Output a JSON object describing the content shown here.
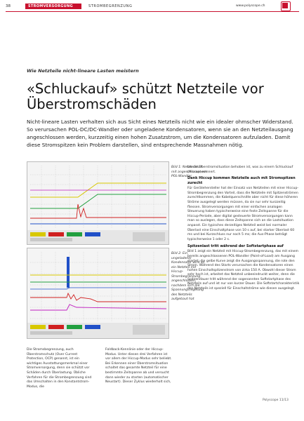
{
  "header": {
    "page_number": "38",
    "section_primary": "STROMVERSORGUNG",
    "section_secondary": "STROMBEGRENZUNG",
    "website": "www.polyscope.ch"
  },
  "article": {
    "kicker": "Wie Netzteile nicht-lineare Lasten meistern",
    "headline": "«Schluckauf» schützt Netzteile vor Überstromschäden",
    "lead": "Nicht-lineare Lasten verhalten sich aus Sicht eines Netzteils nicht wie ein idealer ohmscher Widerstand. So verursachen POL-DC/DC-Wandler oder ungeladene Kondensatoren, wenn sie an den Netzteilausgang angeschlossen werden, kurzzeitig einen hohen Zusatzstrom, um die Kondensatoren aufzuladen. Damit diese Stromspitzen kein Problem darstellen, sind entsprechende Massnahmen nötig."
  },
  "figures": {
    "fig1_caption": "Bild 1: Netzteilstart mit angeschlossenem POL-Wandler",
    "fig2_caption": "Bild 2: Ein ungeladener Kondensator wird an ein Netzteil mit Hiccup-Strombegrenzung angeschlossen, nachdem sich die Spannungsregelung des Netzteils aufgebaut hat"
  },
  "right_column": {
    "intro": "bis die Überstromsituation behoben ist, was zu einem Schluckauf (Hiccup) erinnert.",
    "subhead1": "Dank Hiccup kommen Netzteile auch mit Stromspitzen zurecht",
    "para1": "Für Gerätehersteller hat der Einsatz von Netzteilen mit einer Hiccup-Strombegrenzung den Vorteil, dass die Netzteile mit Spitzenströmen zurechtkommen, die Kabelquerschnitte aber nicht für diese höheren Ströme ausgelegt werden müssen, da sie nur sehr kurzzeitig fliessen. Stromversorgungen mit einer einfachen analogen Steuerung haben typischerweise eine feste Zeitspanne für die Hiccup-Periode, aber digital gesteuerte Stromversorgungen kann man so auslegen, dass diese Zeitspanne sich an die Lastsituation anpasst. Ein typisches derzeitiges Netzteil weist bei normaler Überlast eine Einschaltphase von 10 s auf, bei starker Überlast 60 ms und bei Kurzschluss nur noch 5 ms; die Aus-Phase beträgt typischerweise 1 oder 2 s.",
    "subhead2": "Spitzenlast tritt während der Softstartphase auf",
    "para2": "Bild 1 zeigt ein Netzteil mit Hiccup-Strombegrenzung, das mit einem bereits angeschlossenen POL-Wandler (Point-of-Load) am Ausgang startet; die gelbe Kurve zeigt die Ausgangsspannung, die rote den Strom. Während des Starts verursachen die Kondensatoren einen hohen Einschaltspitzenstrom von zirka 150 A. Obwohl dieser Strom sehr hoch ist, arbeitet das Netzteil unbeeindruckt weiter, denn die Spitzendauer tritt während der sogenannten Softstartphase des Netzteils auf und ist nur von kurzer Dauer. Die Softstartcharakteristik des Netzteils ist speziell für Einschaltströme wie diesen ausgelegt."
  },
  "bottom_columns": {
    "col1": "Die Stromsbegrenzung, auch Überstromschutz (Over Current Protection, OCP) genannt, ist ein wichtiges Ausstattungsmerkmal einer Stromversorgung, denn sie schützt vor Schäden durch Überlastung. Übliche Verfahren für die Strombegrenzung sind das Umschalten in den Konstantstrom-Modus, die",
    "col2": "Foldback-Kennlinie oder der Hiccup-Modus. Unter diesen drei Verfahren ist vor allem der Hiccup-Modus sehr beliebt. Bei Erkennen einer Überstromsituation schaltet das gesamte Netzteil für eine bestimmte Zeitspanne ab und versucht dann wieder zu starten (automatischer Neustart). Dieser Zyklus wiederholt sich,"
  },
  "footer": {
    "text": "Polyscope 11/13"
  },
  "colors": {
    "accent": "#c8102e",
    "trace_yellow": "#d8c800",
    "trace_red": "#d02020",
    "trace_green": "#22a040",
    "trace_blue": "#2050c8",
    "trace_magenta": "#c020c0"
  },
  "icons": {
    "logo": "polyscope-logo-icon"
  }
}
